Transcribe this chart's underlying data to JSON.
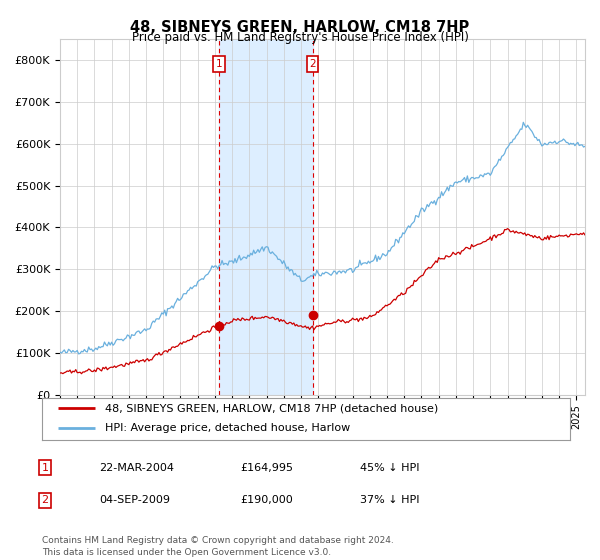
{
  "title": "48, SIBNEYS GREEN, HARLOW, CM18 7HP",
  "subtitle": "Price paid vs. HM Land Registry's House Price Index (HPI)",
  "ylim": [
    0,
    850000
  ],
  "yticks": [
    0,
    100000,
    200000,
    300000,
    400000,
    500000,
    600000,
    700000,
    800000
  ],
  "ytick_labels": [
    "£0",
    "£100K",
    "£200K",
    "£300K",
    "£400K",
    "£500K",
    "£600K",
    "£700K",
    "£800K"
  ],
  "hpi_color": "#6ab0de",
  "price_color": "#cc0000",
  "marker1_date_x": 2004.22,
  "marker1_price": 164995,
  "marker2_date_x": 2009.67,
  "marker2_price": 190000,
  "shade_color": "#ddeeff",
  "legend_label1": "48, SIBNEYS GREEN, HARLOW, CM18 7HP (detached house)",
  "legend_label2": "HPI: Average price, detached house, Harlow",
  "table_row1": [
    "1",
    "22-MAR-2004",
    "£164,995",
    "45% ↓ HPI"
  ],
  "table_row2": [
    "2",
    "04-SEP-2009",
    "£190,000",
    "37% ↓ HPI"
  ],
  "footnote": "Contains HM Land Registry data © Crown copyright and database right 2024.\nThis data is licensed under the Open Government Licence v3.0.",
  "background_color": "#ffffff",
  "grid_color": "#cccccc",
  "xlim_start": 1995,
  "xlim_end": 2025.5
}
